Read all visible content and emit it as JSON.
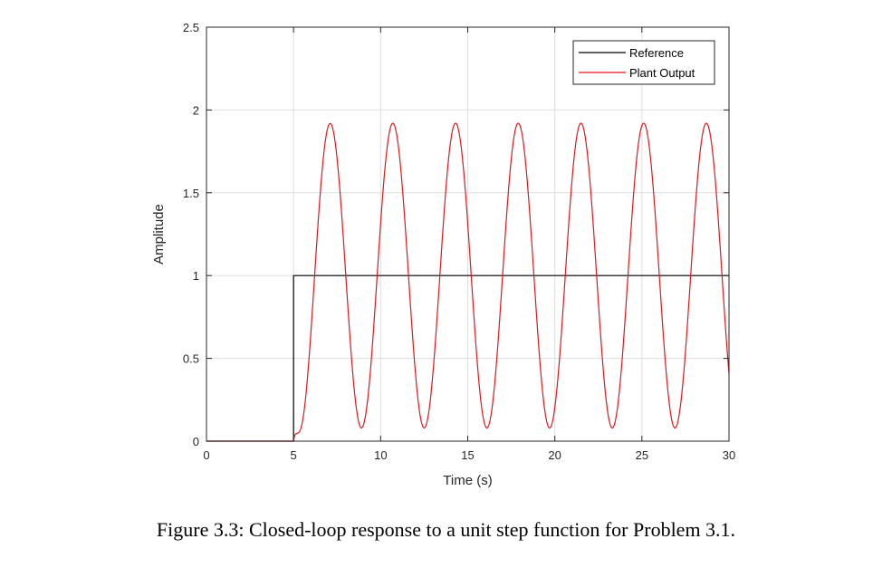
{
  "chart_data": {
    "type": "line",
    "title": "",
    "xlabel": "Time (s)",
    "ylabel": "Amplitude",
    "xlim": [
      0,
      30
    ],
    "ylim": [
      0,
      2.5
    ],
    "xticks": [
      0,
      5,
      10,
      15,
      20,
      25,
      30
    ],
    "xtick_labels": [
      "0",
      "5",
      "10",
      "15",
      "20",
      "25",
      "30"
    ],
    "yticks": [
      0,
      0.5,
      1,
      1.5,
      2,
      2.5
    ],
    "ytick_labels": [
      "0",
      "0.5",
      "1",
      "1.5",
      "2",
      "2.5"
    ],
    "grid": true,
    "legend_position": "top-right",
    "step_time": 5,
    "oscillation": {
      "mean": 1.0,
      "amplitude": 0.92,
      "period": 3.6,
      "first_peak_time": 7.1,
      "peak_value": 1.92,
      "trough_value": 0.08
    },
    "series": [
      {
        "name": "Reference",
        "color": "#000000",
        "x": [
          0,
          5,
          5,
          30
        ],
        "y": [
          0,
          0,
          1,
          1
        ]
      },
      {
        "name": "Plant Output",
        "color": "#e8141c",
        "x": [
          0,
          5,
          7.1,
          8.9,
          10.7,
          12.5,
          14.3,
          16.1,
          17.9,
          19.7,
          21.5,
          23.3,
          25.1,
          26.9,
          28.7,
          30
        ],
        "y": [
          0,
          0,
          1.92,
          0.08,
          1.92,
          0.08,
          1.92,
          0.08,
          1.92,
          0.08,
          1.92,
          0.08,
          1.92,
          0.08,
          1.92,
          0.58
        ]
      }
    ]
  },
  "caption": "Figure 3.3: Closed-loop response to a unit step function for Problem 3.1."
}
